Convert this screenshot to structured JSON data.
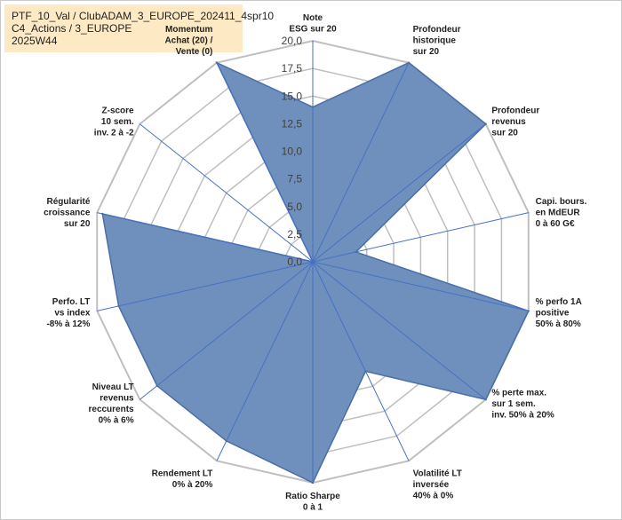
{
  "header": {
    "line1": "PTF_10_Val / ClubADAM_3_EUROPE_202411_4spr10",
    "line2": "C4_Actions / 3_EUROPE",
    "line3": "2025W44"
  },
  "chart_data": {
    "type": "radar",
    "title": "",
    "rmin": 0,
    "rmax": 20,
    "ticks": [
      "0,0",
      "2,5",
      "5,0",
      "7,5",
      "10,0",
      "12,5",
      "15,0",
      "17,5",
      "20,0"
    ],
    "tick_values": [
      0,
      2.5,
      5,
      7.5,
      10,
      12.5,
      15,
      17.5,
      20
    ],
    "axes": [
      {
        "label": [
          "Note",
          "ESG sur 20"
        ],
        "value": 14.0
      },
      {
        "label": [
          "Profondeur",
          "historique",
          "sur 20"
        ],
        "value": 20.0
      },
      {
        "label": [
          "Profondeur",
          "revenus",
          "sur 20"
        ],
        "value": 20.0
      },
      {
        "label": [
          "Capi. bours.",
          "en MdEUR",
          "0 à 60 G€"
        ],
        "value": 4.0
      },
      {
        "label": [
          "% perfo 1A",
          "positive",
          "50% à 80%"
        ],
        "value": 20.0
      },
      {
        "label": [
          "% perte max.",
          "sur 1 sem.",
          "inv. 50% à 20%"
        ],
        "value": 20.0
      },
      {
        "label": [
          "Volatilité LT",
          "inversée",
          "40% à 0%"
        ],
        "value": 11.0
      },
      {
        "label": [
          "Ratio Sharpe",
          "0 à 1"
        ],
        "value": 20.0
      },
      {
        "label": [
          "Rendement LT",
          "0% à 20%"
        ],
        "value": 18.0
      },
      {
        "label": [
          "Niveau LT",
          "revenus",
          "reccurents",
          "0% à 6%"
        ],
        "value": 18.0
      },
      {
        "label": [
          "Perfo. LT",
          "vs index",
          "-8% à 12%"
        ],
        "value": 18.0
      },
      {
        "label": [
          "Régularité",
          "croissance",
          "sur 20"
        ],
        "value": 19.5
      },
      {
        "label": [
          "Z-score",
          "10 sem.",
          "inv. 2 à -2"
        ],
        "value": 0.0
      },
      {
        "label": [
          "Momentum",
          "Achat (20) /",
          "Vente (0)"
        ],
        "value": 20.0
      }
    ],
    "colors": {
      "fill": "#6f8fbd",
      "stroke": "#4a6ea8",
      "grid": "#bfbfbf",
      "spoke": "#4472c4",
      "highlight": "#fde9c4"
    }
  }
}
